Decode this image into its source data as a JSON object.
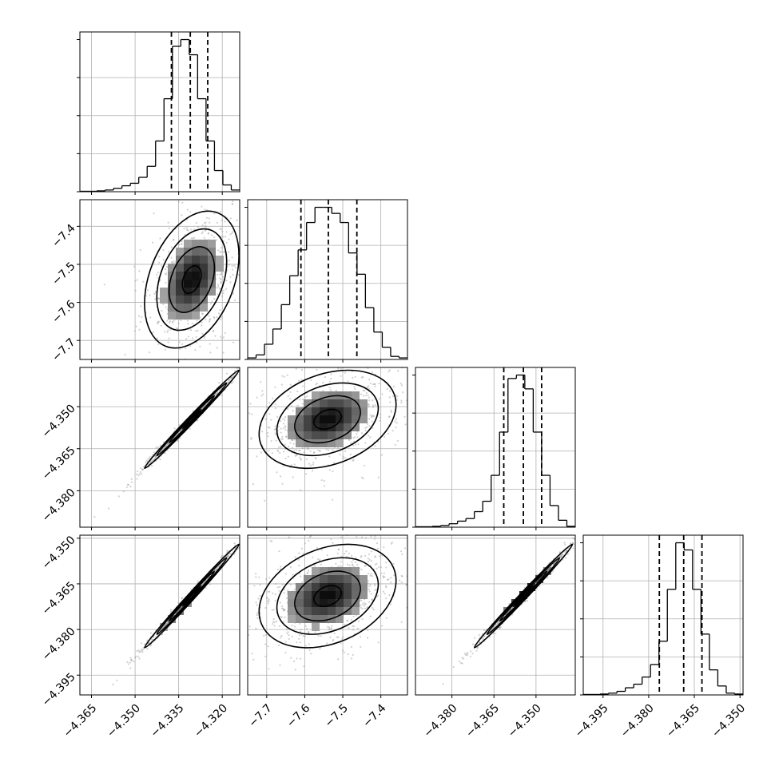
{
  "chart_data": {
    "type": "corner",
    "parameters": [
      {
        "range": [
          -4.369,
          -4.314
        ],
        "ticks": [
          -4.365,
          -4.35,
          -4.335,
          -4.32
        ],
        "tick_labels": [
          "−4.365",
          "−4.350",
          "−4.335",
          "−4.320"
        ]
      },
      {
        "range": [
          -7.75,
          -7.33
        ],
        "ticks": [
          -7.7,
          -7.6,
          -7.5,
          -7.4
        ],
        "tick_labels": [
          "−7.7",
          "−7.6",
          "−7.5",
          "−7.4"
        ]
      },
      {
        "range": [
          -4.393,
          -4.336
        ],
        "ticks": [
          -4.38,
          -4.365,
          -4.35
        ],
        "tick_labels": [
          "−4.380",
          "−4.365",
          "−4.350"
        ]
      },
      {
        "range": [
          -4.4015,
          -4.349
        ],
        "ticks": [
          -4.395,
          -4.38,
          -4.365,
          -4.35
        ],
        "tick_labels": [
          "−4.395",
          "−4.380",
          "−4.365",
          "−4.350"
        ]
      }
    ],
    "histograms": [
      {
        "counts": [
          0.5,
          0.5,
          1,
          2,
          4,
          7,
          10,
          17,
          30,
          60,
          110,
          172,
          180,
          162,
          110,
          60,
          25,
          8,
          2
        ],
        "quantiles": [
          -4.3375,
          -4.331,
          -4.325
        ]
      },
      {
        "counts": [
          1,
          3,
          10,
          20,
          36,
          55,
          72,
          90,
          100,
          100,
          96,
          90,
          70,
          56,
          34,
          18,
          8,
          2,
          1
        ],
        "quantiles": [
          -7.61,
          -7.538,
          -7.463
        ]
      },
      {
        "counts": [
          0.5,
          0.5,
          1,
          2,
          4,
          7,
          10,
          18,
          30,
          60,
          110,
          172,
          176,
          160,
          110,
          60,
          25,
          8,
          1
        ],
        "quantiles": [
          -4.3615,
          -4.3545,
          -4.348
        ]
      },
      {
        "counts": [
          0.5,
          0.5,
          1,
          2,
          4,
          8,
          12,
          20,
          34,
          60,
          118,
          170,
          162,
          118,
          68,
          28,
          10,
          2,
          1
        ],
        "quantiles": [
          -4.3765,
          -4.3685,
          -4.3625
        ]
      }
    ],
    "correlations": [
      [
        1,
        0.35,
        0.995,
        0.995
      ],
      [
        0.35,
        1,
        0.3,
        0.3
      ],
      [
        0.995,
        0.3,
        1,
        0.995
      ],
      [
        0.995,
        0.3,
        0.995,
        1
      ]
    ],
    "means": [
      -4.3305,
      -7.54,
      -4.3545,
      -4.369
    ],
    "sigmas": [
      0.0065,
      0.072,
      0.007,
      0.0068
    ],
    "grid": true
  }
}
